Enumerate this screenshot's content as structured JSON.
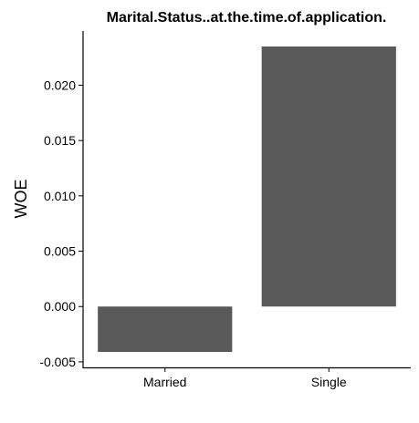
{
  "chart_data": {
    "type": "bar",
    "title": "Marital.Status..at.the.time.of.application.",
    "xlabel": "",
    "ylabel": "WOE",
    "categories": [
      "Married",
      "Single"
    ],
    "values": [
      -0.0041,
      0.0235
    ],
    "y_ticks": [
      -0.005,
      0.0,
      0.005,
      0.01,
      0.015,
      0.02
    ],
    "y_tick_labels": [
      "-0.005",
      "0.000",
      "0.005",
      "0.010",
      "0.015",
      "0.020"
    ],
    "ylim": [
      -0.0055,
      0.0249
    ],
    "bar_color": "#595959",
    "grid": false,
    "legend": "none"
  }
}
